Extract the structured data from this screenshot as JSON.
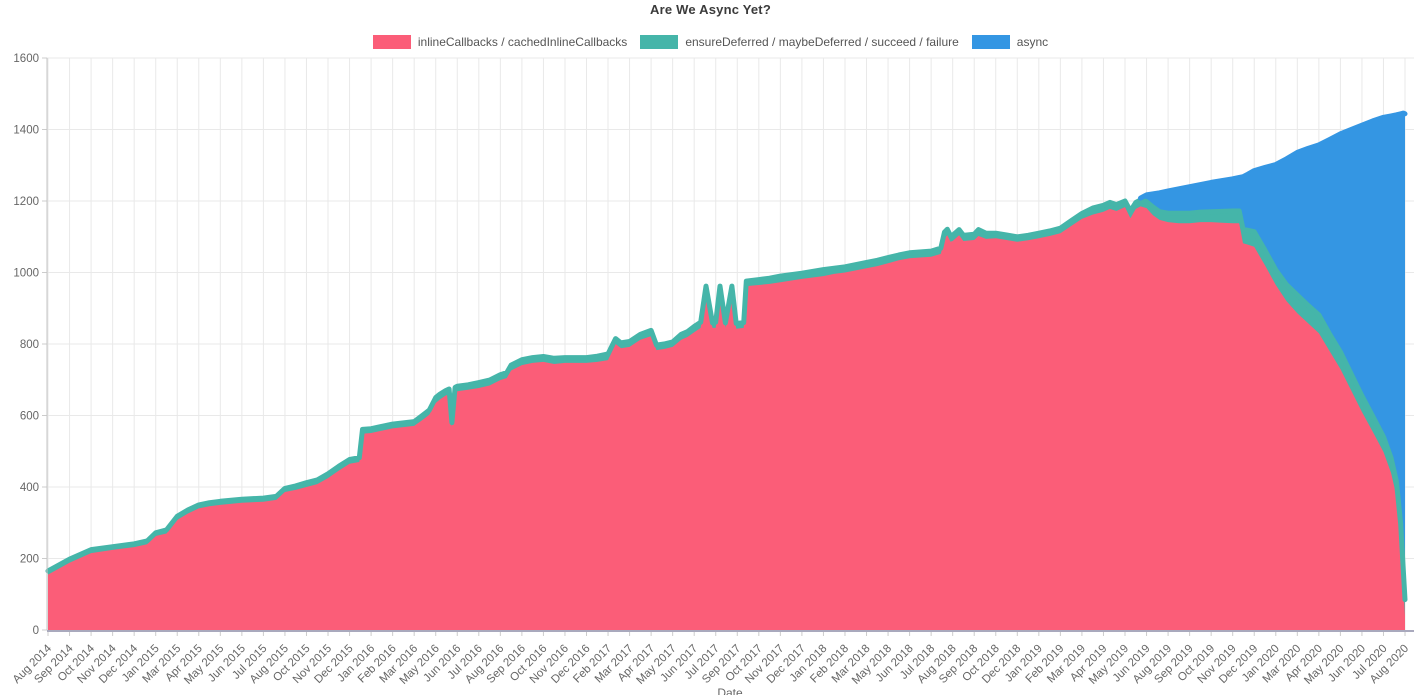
{
  "chart": {
    "title": "Are We Async Yet?"
  },
  "chart_data": {
    "type": "area",
    "stacked": true,
    "title": "Are We Async Yet?",
    "xlabel": "Date",
    "ylabel": "",
    "ylim": [
      0,
      1600
    ],
    "y_ticks": [
      0,
      200,
      400,
      600,
      800,
      1000,
      1200,
      1400,
      1600
    ],
    "grid": true,
    "legend_position": "top-center",
    "colors": {
      "inlineCallbacks": "#FB5D78",
      "ensureDeferred": "#45B5A9",
      "async": "#3496E3",
      "gridline": "#e9e9e9",
      "axis_line": "#c5c5c5",
      "baseline": "#a9a9bd",
      "tick": "#cccccc",
      "label_text": "#666666"
    },
    "legend": [
      {
        "label": "inlineCallbacks / cachedInlineCallbacks",
        "color": "#FB5D78"
      },
      {
        "label": "ensureDeferred / maybeDeferred / succeed / failure",
        "color": "#45B5A9"
      },
      {
        "label": "async",
        "color": "#3496E3"
      }
    ],
    "x_tick_labels": [
      "Aug 2014",
      "Sep 2014",
      "Oct 2014",
      "Nov 2014",
      "Dec 2014",
      "Jan 2015",
      "Mar 2015",
      "Apr 2015",
      "May 2015",
      "Jun 2015",
      "Jul 2015",
      "Aug 2015",
      "Oct 2015",
      "Nov 2015",
      "Dec 2015",
      "Jan 2016",
      "Feb 2016",
      "Mar 2016",
      "May 2016",
      "Jun 2016",
      "Jul 2016",
      "Aug 2016",
      "Sep 2016",
      "Oct 2016",
      "Nov 2016",
      "Dec 2016",
      "Feb 2017",
      "Mar 2017",
      "Apr 2017",
      "May 2017",
      "Jun 2017",
      "Jul 2017",
      "Sep 2017",
      "Oct 2017",
      "Nov 2017",
      "Dec 2017",
      "Jan 2018",
      "Feb 2018",
      "Mar 2018",
      "May 2018",
      "Jun 2018",
      "Jul 2018",
      "Aug 2018",
      "Sep 2018",
      "Oct 2018",
      "Dec 2018",
      "Jan 2019",
      "Feb 2019",
      "Mar 2019",
      "Apr 2019",
      "May 2019",
      "Jun 2019",
      "Aug 2019",
      "Sep 2019",
      "Oct 2019",
      "Nov 2019",
      "Dec 2019",
      "Jan 2020",
      "Mar 2020",
      "Apr 2020",
      "May 2020",
      "Jun 2020",
      "Jul 2020",
      "Aug 2020"
    ],
    "points_format": [
      "x_tick_index",
      "inlineCallbacks_cachedInlineCallbacks",
      "plus_ensureDeferred_cumulative",
      "plus_async_cumulative_total"
    ],
    "points": [
      [
        0,
        155,
        165
      ],
      [
        1,
        188,
        198
      ],
      [
        2,
        215,
        225
      ],
      [
        3,
        224,
        233
      ],
      [
        4,
        232,
        241
      ],
      [
        4.6,
        240,
        249
      ],
      [
        5,
        263,
        272
      ],
      [
        5.5,
        270,
        280
      ],
      [
        6,
        308,
        318
      ],
      [
        6.5,
        326,
        336
      ],
      [
        7,
        340,
        350
      ],
      [
        7.5,
        346,
        356
      ],
      [
        8,
        350,
        360
      ],
      [
        9,
        356,
        366
      ],
      [
        10,
        359,
        369
      ],
      [
        10.6,
        364,
        374
      ],
      [
        11,
        386,
        396
      ],
      [
        11.5,
        392,
        403
      ],
      [
        12,
        400,
        412
      ],
      [
        12.5,
        408,
        420
      ],
      [
        13,
        425,
        437
      ],
      [
        13.5,
        446,
        458
      ],
      [
        14,
        465,
        477
      ],
      [
        14.45,
        470,
        482
      ],
      [
        14.6,
        549,
        561
      ],
      [
        15,
        551,
        563
      ],
      [
        16,
        564,
        576
      ],
      [
        17,
        571,
        583
      ],
      [
        17.4,
        588,
        601
      ],
      [
        17.7,
        602,
        615
      ],
      [
        18,
        635,
        650
      ],
      [
        18.2,
        645,
        660
      ],
      [
        18.45,
        655,
        669
      ],
      [
        18.62,
        660,
        674
      ],
      [
        18.75,
        568,
        580
      ],
      [
        18.9,
        665,
        679
      ],
      [
        19,
        668,
        682
      ],
      [
        19.5,
        672,
        686
      ],
      [
        20,
        677,
        692
      ],
      [
        20.5,
        684,
        699
      ],
      [
        21,
        699,
        714
      ],
      [
        21.3,
        705,
        720
      ],
      [
        21.5,
        726,
        741
      ],
      [
        22,
        741,
        756
      ],
      [
        22.5,
        747,
        762
      ],
      [
        23,
        750,
        765
      ],
      [
        23.5,
        744,
        760
      ],
      [
        24,
        747,
        762
      ],
      [
        25,
        747,
        762
      ],
      [
        25.5,
        750,
        766
      ],
      [
        26,
        755,
        772
      ],
      [
        26.35,
        800,
        815
      ],
      [
        26.6,
        788,
        803
      ],
      [
        27,
        792,
        807
      ],
      [
        27.5,
        812,
        827
      ],
      [
        28,
        822,
        838
      ],
      [
        28.25,
        783,
        797
      ],
      [
        28.6,
        786,
        800
      ],
      [
        29,
        792,
        806
      ],
      [
        29.4,
        812,
        827
      ],
      [
        29.7,
        820,
        835
      ],
      [
        30,
        833,
        849
      ],
      [
        30.3,
        845,
        861
      ],
      [
        30.55,
        948,
        962
      ],
      [
        30.85,
        845,
        859
      ],
      [
        31,
        845,
        861
      ],
      [
        31.2,
        948,
        962
      ],
      [
        31.45,
        845,
        859
      ],
      [
        31.75,
        948,
        962
      ],
      [
        31.95,
        843,
        858
      ],
      [
        32,
        843,
        858
      ],
      [
        32.3,
        845,
        860
      ],
      [
        32.42,
        962,
        976
      ],
      [
        33,
        965,
        980
      ],
      [
        33.5,
        968,
        984
      ],
      [
        34,
        973,
        990
      ],
      [
        35,
        982,
        998
      ],
      [
        36,
        990,
        1008
      ],
      [
        36.5,
        996,
        1012
      ],
      [
        37,
        1000,
        1016
      ],
      [
        38,
        1012,
        1028
      ],
      [
        38.5,
        1018,
        1034
      ],
      [
        39,
        1026,
        1042
      ],
      [
        39.5,
        1034,
        1049
      ],
      [
        40,
        1040,
        1055
      ],
      [
        41,
        1044,
        1060
      ],
      [
        41.45,
        1052,
        1068
      ],
      [
        41.62,
        1096,
        1113
      ],
      [
        41.75,
        1104,
        1121
      ],
      [
        41.9,
        1086,
        1103
      ],
      [
        42,
        1088,
        1104
      ],
      [
        42.3,
        1104,
        1120
      ],
      [
        42.5,
        1088,
        1104
      ],
      [
        43,
        1091,
        1107
      ],
      [
        43.2,
        1102,
        1120
      ],
      [
        43.55,
        1094,
        1110
      ],
      [
        44,
        1096,
        1110
      ],
      [
        44.5,
        1091,
        1105
      ],
      [
        45,
        1086,
        1100
      ],
      [
        45.5,
        1090,
        1104
      ],
      [
        46,
        1096,
        1110
      ],
      [
        46.5,
        1102,
        1116
      ],
      [
        47,
        1110,
        1124
      ],
      [
        47.5,
        1130,
        1145
      ],
      [
        48,
        1150,
        1165
      ],
      [
        48.5,
        1162,
        1180
      ],
      [
        49,
        1170,
        1188
      ],
      [
        49.3,
        1178,
        1196
      ],
      [
        49.6,
        1172,
        1190
      ],
      [
        50,
        1183,
        1200
      ],
      [
        50.25,
        1152,
        1172
      ],
      [
        50.5,
        1178,
        1196
      ],
      [
        50.72,
        1185,
        1203,
        1208
      ],
      [
        51,
        1180,
        1198,
        1217
      ],
      [
        51.3,
        1160,
        1183,
        1220
      ],
      [
        51.6,
        1147,
        1170,
        1223
      ],
      [
        52,
        1141,
        1166,
        1228
      ],
      [
        52.5,
        1138,
        1166,
        1234
      ],
      [
        53,
        1138,
        1166,
        1240
      ],
      [
        53.5,
        1141,
        1169,
        1246
      ],
      [
        54,
        1141,
        1170,
        1252
      ],
      [
        54.5,
        1139,
        1171,
        1257
      ],
      [
        55,
        1138,
        1172,
        1262
      ],
      [
        55.3,
        1138,
        1172,
        1266
      ],
      [
        55.48,
        1082,
        1121,
        1268
      ],
      [
        55.7,
        1078,
        1118,
        1275
      ],
      [
        56,
        1072,
        1114,
        1285
      ],
      [
        56.5,
        1020,
        1062,
        1294
      ],
      [
        57,
        965,
        1007,
        1302
      ],
      [
        57.5,
        920,
        966,
        1318
      ],
      [
        58,
        886,
        937,
        1336
      ],
      [
        58.5,
        858,
        908,
        1347
      ],
      [
        59,
        830,
        881,
        1357
      ],
      [
        59.5,
        780,
        828,
        1372
      ],
      [
        60,
        730,
        778,
        1388
      ],
      [
        60.5,
        670,
        716,
        1400
      ],
      [
        61,
        610,
        655,
        1412
      ],
      [
        61.5,
        555,
        598,
        1424
      ],
      [
        62,
        498,
        540,
        1434
      ],
      [
        62.35,
        440,
        482,
        1438
      ],
      [
        62.6,
        375,
        416,
        1441
      ],
      [
        62.8,
        255,
        296,
        1444
      ],
      [
        62.93,
        115,
        158,
        1446
      ],
      [
        63,
        40,
        85,
        1444
      ]
    ]
  }
}
